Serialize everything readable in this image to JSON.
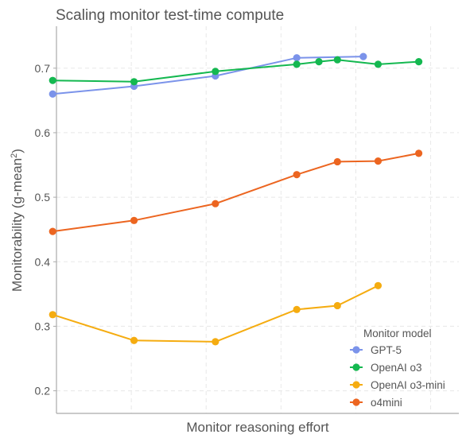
{
  "chart_data": {
    "type": "line",
    "title": "Scaling monitor test-time compute",
    "xlabel": "Monitor reasoning effort",
    "ylabel": "Monitorability (g-mean",
    "ylabel_superscript": "2",
    "ylabel_close": ")",
    "ylim": [
      0.165,
      0.765
    ],
    "xlim": [
      0,
      1
    ],
    "yticks": [
      "0.2",
      "0.3",
      "0.4",
      "0.5",
      "0.6",
      "0.7"
    ],
    "ytick_values": [
      0.2,
      0.3,
      0.4,
      0.5,
      0.6,
      0.7
    ],
    "grid": true,
    "legend": {
      "title": "Monitor model",
      "placement": "lower-right"
    },
    "series": [
      {
        "name": "GPT-5",
        "color": "#7b93ea",
        "x": [
          0.05,
          0.27,
          0.49,
          0.71,
          0.89
        ],
        "y": [
          0.66,
          0.672,
          0.688,
          0.716,
          0.718
        ]
      },
      {
        "name": "OpenAI o3",
        "color": "#14b850",
        "x": [
          0.05,
          0.27,
          0.49,
          0.71,
          0.77,
          0.82,
          0.93,
          1.04
        ],
        "y": [
          0.681,
          0.679,
          0.695,
          0.706,
          0.71,
          0.713,
          0.706,
          0.71
        ]
      },
      {
        "name": "OpenAI o3-mini",
        "color": "#f5ac10",
        "x": [
          0.05,
          0.27,
          0.49,
          0.71,
          0.82,
          0.93
        ],
        "y": [
          0.318,
          0.278,
          0.276,
          0.326,
          0.332,
          0.363
        ]
      },
      {
        "name": "o4mini",
        "color": "#ec6520",
        "x": [
          0.05,
          0.27,
          0.49,
          0.71,
          0.82,
          0.93,
          1.04
        ],
        "y": [
          0.447,
          0.464,
          0.49,
          0.535,
          0.555,
          0.556,
          0.568
        ]
      }
    ]
  }
}
